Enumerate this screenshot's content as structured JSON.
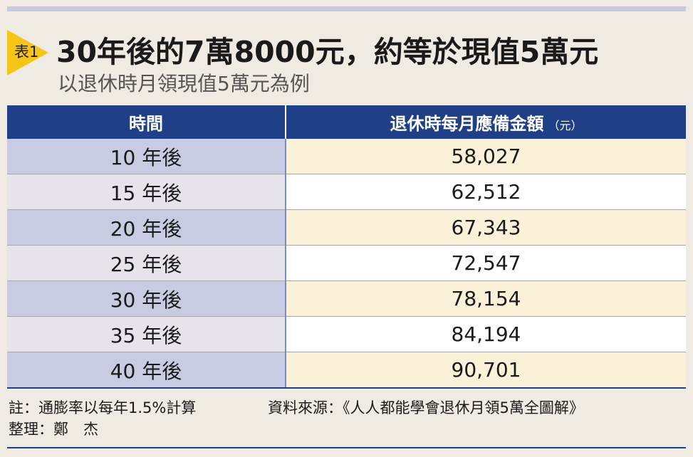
{
  "header": {
    "badge": "表1",
    "title": "30年後的7萬8000元，約等於現值5萬元",
    "subtitle": "以退休時月領現值5萬元為例",
    "accent_color": "#f5c518",
    "header_color": "#1f3f86"
  },
  "table": {
    "columns": {
      "period": "時間",
      "amount": "退休時每月應備金額",
      "amount_unit": "（元）"
    },
    "rows": [
      {
        "period": "10 年後",
        "amount": "58,027"
      },
      {
        "period": "15 年後",
        "amount": "62,512"
      },
      {
        "period": "20 年後",
        "amount": "67,343"
      },
      {
        "period": "25 年後",
        "amount": "72,547"
      },
      {
        "period": "30 年後",
        "amount": "78,154"
      },
      {
        "period": "35 年後",
        "amount": "84,194"
      },
      {
        "period": "40 年後",
        "amount": "90,701"
      }
    ]
  },
  "footer": {
    "note": "註：通膨率以每年1.5%計算",
    "source": "資料來源：《人人都能學會退休月領5萬全圖解》",
    "editor": "整理：鄭　杰"
  }
}
